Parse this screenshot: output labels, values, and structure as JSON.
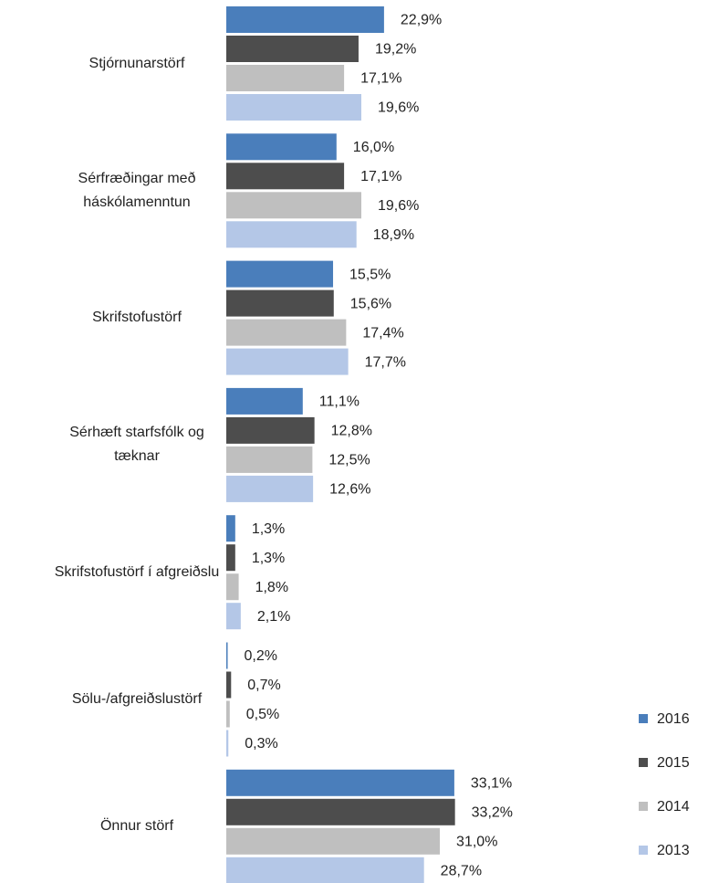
{
  "chart_data": {
    "type": "bar",
    "orientation": "horizontal",
    "categories": [
      "Stjórnunarstörf",
      "Sérfræðingar með háskólamenntun",
      "Skrifstofustörf",
      "Sérhæft starfsfólk og tæknar",
      "Skrifstofustörf í afgreiðslu",
      "Sölu-/afgreiðslustörf",
      "Önnur störf"
    ],
    "series": [
      {
        "name": "2016",
        "color": "#4a7ebb",
        "values": [
          22.9,
          16.0,
          15.5,
          11.1,
          1.3,
          0.2,
          33.1
        ],
        "value_labels": [
          "22,9%",
          "16,0%",
          "15,5%",
          "11,1%",
          "1,3%",
          "0,2%",
          "33,1%"
        ]
      },
      {
        "name": "2015",
        "color": "#4d4d4d",
        "values": [
          19.2,
          17.1,
          15.6,
          12.8,
          1.3,
          0.7,
          33.2
        ],
        "value_labels": [
          "19,2%",
          "17,1%",
          "15,6%",
          "12,8%",
          "1,3%",
          "0,7%",
          "33,2%"
        ]
      },
      {
        "name": "2014",
        "color": "#bfbfbf",
        "values": [
          17.1,
          19.6,
          17.4,
          12.5,
          1.8,
          0.5,
          31.0
        ],
        "value_labels": [
          "17,1%",
          "19,6%",
          "17,4%",
          "12,5%",
          "1,8%",
          "0,5%",
          "31,0%"
        ]
      },
      {
        "name": "2013",
        "color": "#b4c7e7",
        "values": [
          19.6,
          18.9,
          17.7,
          12.6,
          2.1,
          0.3,
          28.7
        ],
        "value_labels": [
          "19,6%",
          "18,9%",
          "17,7%",
          "12,6%",
          "2,1%",
          "0,3%",
          "28,7%"
        ]
      }
    ],
    "legend": "right"
  }
}
